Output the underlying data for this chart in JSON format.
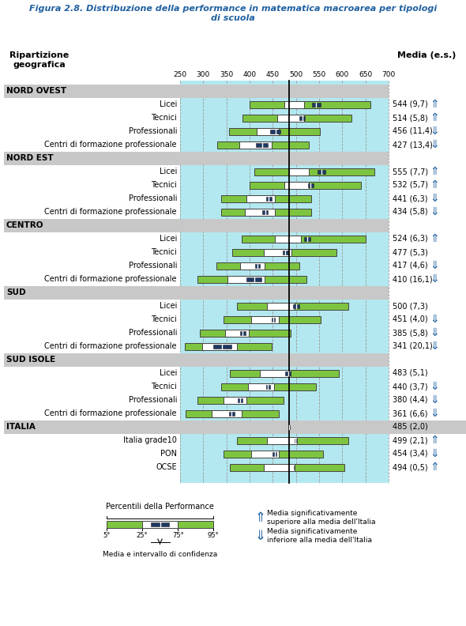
{
  "title_line1": "Figura 2.8. Distribuzione della performance in matematica macroarea per tipologi",
  "title_line2": "di scuola",
  "col_header_left": "Ripartizione\ngeografica",
  "col_header_right": "Media (e.s.)",
  "x_min": 250,
  "x_max": 700,
  "x_ticks": [
    250,
    300,
    350,
    400,
    450,
    500,
    550,
    600,
    650,
    700
  ],
  "italia_line": 485,
  "background_color": "#b3e8f0",
  "green_color": "#7dc540",
  "navy_color": "#1f3864",
  "white_color": "#ffffff",
  "header_bg": "#c8c8c8",
  "title_color": "#2060a0",
  "rows": [
    {
      "label": "NORD OVEST",
      "type": "header",
      "mean": null,
      "se": null,
      "p5": null,
      "p25": null,
      "p75": null,
      "p95": null,
      "ci_low": null,
      "ci_high": null,
      "arrow": null
    },
    {
      "label": "Licei",
      "type": "data",
      "mean": 544,
      "se": "9,7",
      "p5": 400,
      "p25": 475,
      "p75": 518,
      "p95": 660,
      "ci_low": 535,
      "ci_high": 553,
      "arrow": "up"
    },
    {
      "label": "Tecnici",
      "type": "data",
      "mean": 514,
      "se": "5,8",
      "p5": 385,
      "p25": 460,
      "p75": 517,
      "p95": 620,
      "ci_low": 508,
      "ci_high": 520,
      "arrow": "up"
    },
    {
      "label": "Professionali",
      "type": "data",
      "mean": 456,
      "se": "11,4",
      "p5": 355,
      "p25": 415,
      "p75": 463,
      "p95": 552,
      "ci_low": 445,
      "ci_high": 467,
      "arrow": "down"
    },
    {
      "label": "Centri di formazione professionale",
      "type": "data",
      "mean": 427,
      "se": "13,4",
      "p5": 330,
      "p25": 378,
      "p75": 448,
      "p95": 527,
      "ci_low": 414,
      "ci_high": 440,
      "arrow": "down"
    },
    {
      "label": "NORD EST",
      "type": "header",
      "mean": null,
      "se": null,
      "p5": null,
      "p25": null,
      "p75": null,
      "p95": null,
      "ci_low": null,
      "ci_high": null,
      "arrow": null
    },
    {
      "label": "Licei",
      "type": "data",
      "mean": 555,
      "se": "7,7",
      "p5": 410,
      "p25": 485,
      "p75": 528,
      "p95": 670,
      "ci_low": 547,
      "ci_high": 563,
      "arrow": "up"
    },
    {
      "label": "Tecnici",
      "type": "data",
      "mean": 532,
      "se": "5,7",
      "p5": 400,
      "p25": 475,
      "p75": 528,
      "p95": 640,
      "ci_low": 526,
      "ci_high": 538,
      "arrow": "up"
    },
    {
      "label": "Professionali",
      "type": "data",
      "mean": 441,
      "se": "6,3",
      "p5": 338,
      "p25": 394,
      "p75": 454,
      "p95": 533,
      "ci_low": 435,
      "ci_high": 447,
      "arrow": "down"
    },
    {
      "label": "Centri di formazione professionale",
      "type": "data",
      "mean": 434,
      "se": "5,8",
      "p5": 338,
      "p25": 390,
      "p75": 454,
      "p95": 533,
      "ci_low": 428,
      "ci_high": 440,
      "arrow": "down"
    },
    {
      "label": "CENTRO",
      "type": "header",
      "mean": null,
      "se": null,
      "p5": null,
      "p25": null,
      "p75": null,
      "p95": null,
      "ci_low": null,
      "ci_high": null,
      "arrow": null
    },
    {
      "label": "Licei",
      "type": "data",
      "mean": 524,
      "se": "6,3",
      "p5": 383,
      "p25": 455,
      "p75": 510,
      "p95": 650,
      "ci_low": 517,
      "ci_high": 531,
      "arrow": "up"
    },
    {
      "label": "Tecnici",
      "type": "data",
      "mean": 477,
      "se": "5,3",
      "p5": 363,
      "p25": 430,
      "p75": 490,
      "p95": 588,
      "ci_low": 471,
      "ci_high": 483,
      "arrow": null
    },
    {
      "label": "Professionali",
      "type": "data",
      "mean": 417,
      "se": "4,6",
      "p5": 328,
      "p25": 380,
      "p75": 433,
      "p95": 508,
      "ci_low": 412,
      "ci_high": 422,
      "arrow": "down"
    },
    {
      "label": "Centri di formazione professionale",
      "type": "data",
      "mean": 410,
      "se": "16,1",
      "p5": 288,
      "p25": 352,
      "p75": 432,
      "p95": 522,
      "ci_low": 394,
      "ci_high": 426,
      "arrow": "down"
    },
    {
      "label": "SUD",
      "type": "header",
      "mean": null,
      "se": null,
      "p5": null,
      "p25": null,
      "p75": null,
      "p95": null,
      "ci_low": null,
      "ci_high": null,
      "arrow": null
    },
    {
      "label": "Licei",
      "type": "data",
      "mean": 500,
      "se": "7,3",
      "p5": 373,
      "p25": 438,
      "p75": 498,
      "p95": 613,
      "ci_low": 493,
      "ci_high": 507,
      "arrow": null
    },
    {
      "label": "Tecnici",
      "type": "data",
      "mean": 451,
      "se": "4,0",
      "p5": 343,
      "p25": 403,
      "p75": 463,
      "p95": 553,
      "ci_low": 447,
      "ci_high": 455,
      "arrow": "down"
    },
    {
      "label": "Professionali",
      "type": "data",
      "mean": 385,
      "se": "5,8",
      "p5": 293,
      "p25": 348,
      "p75": 398,
      "p95": 488,
      "ci_low": 379,
      "ci_high": 391,
      "arrow": "down"
    },
    {
      "label": "Centri di formazione professionale",
      "type": "data",
      "mean": 341,
      "se": "20,1",
      "p5": 260,
      "p25": 298,
      "p75": 373,
      "p95": 448,
      "ci_low": 321,
      "ci_high": 361,
      "arrow": "down"
    },
    {
      "label": "SUD ISOLE",
      "type": "header",
      "mean": null,
      "se": null,
      "p5": null,
      "p25": null,
      "p75": null,
      "p95": null,
      "ci_low": null,
      "ci_high": null,
      "arrow": null
    },
    {
      "label": "Licei",
      "type": "data",
      "mean": 483,
      "se": "5,1",
      "p5": 358,
      "p25": 423,
      "p75": 488,
      "p95": 593,
      "ci_low": 477,
      "ci_high": 489,
      "arrow": null
    },
    {
      "label": "Tecnici",
      "type": "data",
      "mean": 440,
      "se": "3,7",
      "p5": 338,
      "p25": 396,
      "p75": 453,
      "p95": 543,
      "ci_low": 436,
      "ci_high": 444,
      "arrow": "down"
    },
    {
      "label": "Professionali",
      "type": "data",
      "mean": 380,
      "se": "4,4",
      "p5": 288,
      "p25": 343,
      "p75": 393,
      "p95": 473,
      "ci_low": 375,
      "ci_high": 385,
      "arrow": "down"
    },
    {
      "label": "Centri di formazione professionale",
      "type": "data",
      "mean": 361,
      "se": "6,6",
      "p5": 262,
      "p25": 318,
      "p75": 383,
      "p95": 463,
      "ci_low": 355,
      "ci_high": 367,
      "arrow": "down"
    },
    {
      "label": "ITALIA",
      "type": "italia",
      "mean": 485,
      "se": "2,0",
      "p5": null,
      "p25": null,
      "p75": null,
      "p95": null,
      "ci_low": 483,
      "ci_high": 487,
      "arrow": null
    },
    {
      "label": "Italia grade10",
      "type": "data",
      "mean": 499,
      "se": "2,1",
      "p5": 373,
      "p25": 438,
      "p75": 503,
      "p95": 613,
      "ci_low": 497,
      "ci_high": 501,
      "arrow": "up"
    },
    {
      "label": "PON",
      "type": "data",
      "mean": 454,
      "se": "3,4",
      "p5": 343,
      "p25": 403,
      "p75": 463,
      "p95": 558,
      "ci_low": 450,
      "ci_high": 458,
      "arrow": "down"
    },
    {
      "label": "OCSE",
      "type": "data",
      "mean": 494,
      "se": "0,5",
      "p5": 358,
      "p25": 430,
      "p75": 498,
      "p95": 605,
      "ci_low": 493,
      "ci_high": 495,
      "arrow": "up"
    }
  ]
}
